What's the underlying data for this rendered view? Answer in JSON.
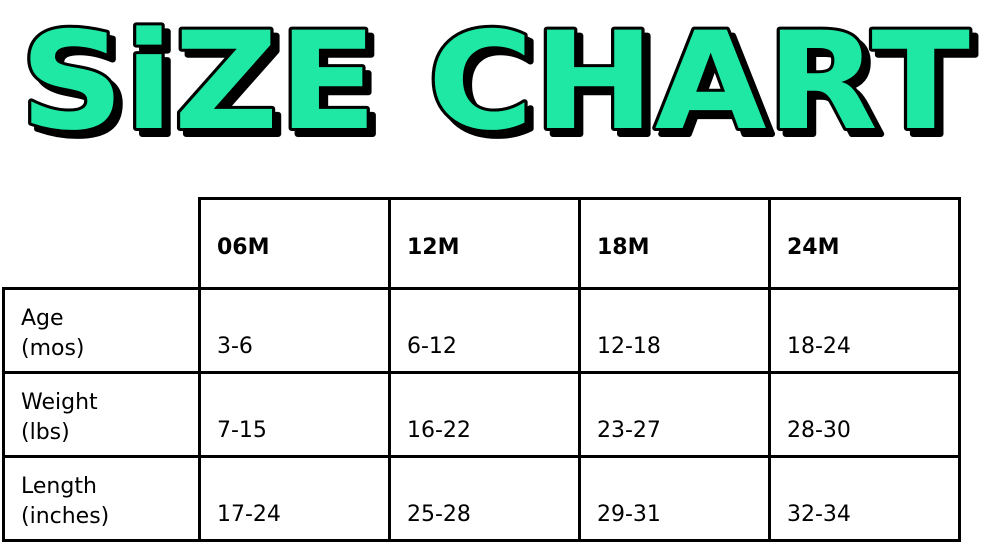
{
  "title": "SiZE CHART",
  "colors": {
    "title_fill": "#1fe8a4",
    "title_outline": "#000000"
  },
  "chart_data": {
    "type": "table",
    "columns": [
      "06M",
      "12M",
      "18M",
      "24M"
    ],
    "rows": [
      {
        "label": [
          "Age",
          "(mos)"
        ],
        "values": [
          "3-6",
          "6-12",
          "12-18",
          "18-24"
        ]
      },
      {
        "label": [
          "Weight",
          "(lbs)"
        ],
        "values": [
          "7-15",
          "16-22",
          "23-27",
          "28-30"
        ]
      },
      {
        "label": [
          "Length",
          "(inches)"
        ],
        "values": [
          "17-24",
          "25-28",
          "29-31",
          "32-34"
        ]
      }
    ]
  }
}
